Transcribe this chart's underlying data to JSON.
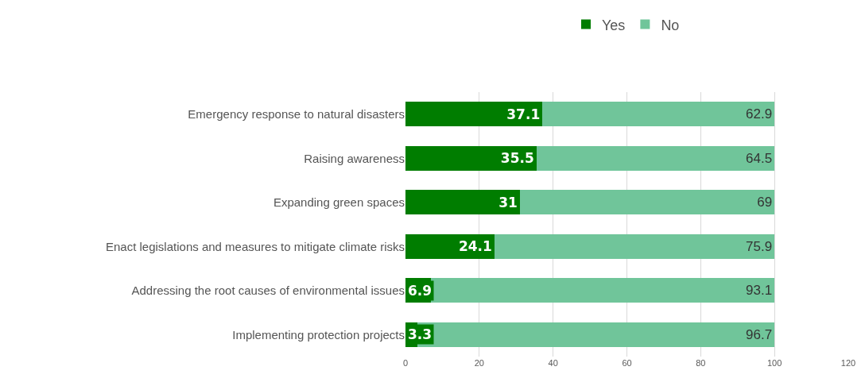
{
  "chart_data": {
    "type": "bar",
    "orientation": "horizontal",
    "stacked": true,
    "categories": [
      "Emergency response to natural disasters",
      "Raising awareness",
      "Expanding green spaces",
      "Enact legislations and measures to mitigate climate risks",
      "Addressing the root causes of environmental issues",
      "Implementing protection projects"
    ],
    "series": [
      {
        "name": "Yes",
        "color": "#007d00",
        "values": [
          37.1,
          35.5,
          31,
          24.1,
          6.9,
          3.3
        ]
      },
      {
        "name": "No",
        "color": "#70c59a",
        "values": [
          62.9,
          64.5,
          69,
          75.9,
          93.1,
          96.7
        ]
      }
    ],
    "xlim": [
      0,
      120
    ],
    "xticks": [
      0,
      20,
      40,
      60,
      80,
      100,
      120
    ],
    "grid": "x",
    "legend": "top",
    "data_labels": true
  }
}
